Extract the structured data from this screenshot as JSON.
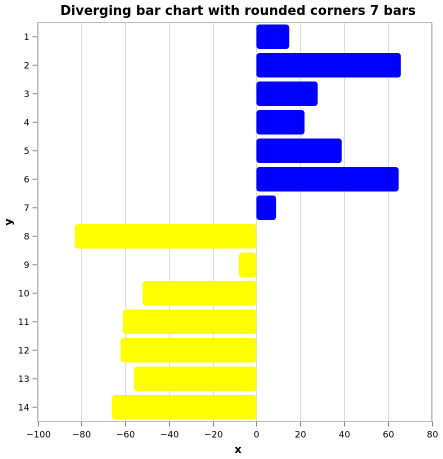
{
  "chart_data": {
    "type": "bar",
    "orientation": "horizontal",
    "title": "Diverging bar chart with rounded corners 7 bars",
    "xlabel": "x",
    "ylabel": "y",
    "xlim": [
      -100,
      80
    ],
    "x_ticks": [
      -100,
      -80,
      -60,
      -40,
      -20,
      0,
      20,
      40,
      60,
      80
    ],
    "categories": [
      "1",
      "2",
      "3",
      "4",
      "5",
      "6",
      "7",
      "8",
      "9",
      "10",
      "11",
      "12",
      "13",
      "14"
    ],
    "values": [
      15,
      66,
      28,
      22,
      39,
      65,
      9,
      -83,
      -8,
      -52,
      -61,
      -62,
      -56,
      -66
    ],
    "colors": {
      "positive": "#0000ff",
      "negative": "#ffff00"
    },
    "grid": true,
    "legend": "none"
  }
}
